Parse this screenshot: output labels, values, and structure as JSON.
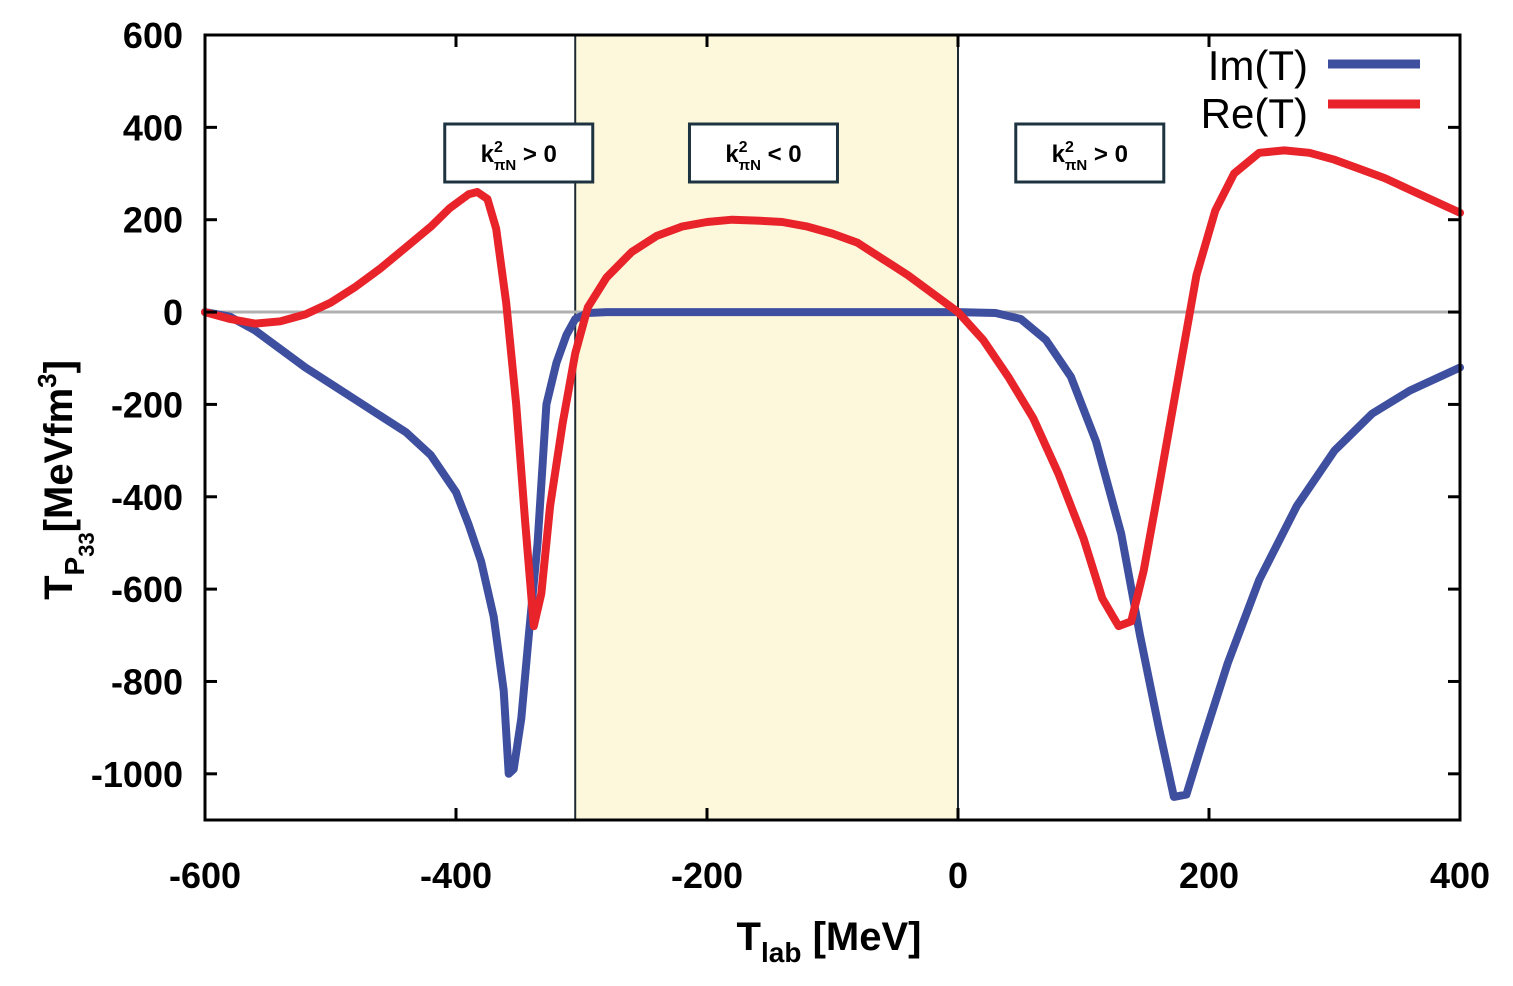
{
  "chart_data": {
    "type": "line",
    "title": "",
    "xlabel": {
      "main": "T",
      "sub": "lab",
      "unit": " [MeV]"
    },
    "ylabel": {
      "main": "T",
      "sub": "P",
      "subsub": "33",
      "unit": "[MeVfm",
      "sup": "3",
      "close": "]"
    },
    "xlim": [
      -600,
      400
    ],
    "ylim": [
      -1100,
      600
    ],
    "xticks": [
      "-600",
      "-400",
      "-200",
      "0",
      "200",
      "400"
    ],
    "xtick_values": [
      -600,
      -400,
      -200,
      0,
      200,
      400
    ],
    "yticks": [
      "600",
      "400",
      "200",
      "0",
      "-200",
      "-400",
      "-600",
      "-800",
      "-1000"
    ],
    "ytick_values": [
      600,
      400,
      200,
      0,
      -200,
      -400,
      -600,
      -800,
      -1000
    ],
    "zero_line": true,
    "shaded_region": {
      "x": [
        -305,
        0
      ],
      "color": "#fdf8dc"
    },
    "legend_position": "top-right",
    "region_labels": [
      {
        "k": "k",
        "sup": "2",
        "sub": "πN",
        "rel": " > 0",
        "x": -350
      },
      {
        "k": "k",
        "sup": "2",
        "sub": "πN",
        "rel": " < 0",
        "x": -155
      },
      {
        "k": "k",
        "sup": "2",
        "sub": "πN",
        "rel": " > 0",
        "x": 105
      }
    ],
    "colors": {
      "im": "#3f4fa0",
      "re": "#e8232a",
      "zero": "#b0b0b0",
      "shade": "#fdf8dc"
    },
    "series": [
      {
        "name": "Im(T)",
        "color": "#3f4fa0",
        "points": [
          [
            -600,
            0
          ],
          [
            -580,
            -10
          ],
          [
            -560,
            -40
          ],
          [
            -540,
            -80
          ],
          [
            -520,
            -120
          ],
          [
            -500,
            -155
          ],
          [
            -480,
            -190
          ],
          [
            -460,
            -225
          ],
          [
            -440,
            -260
          ],
          [
            -420,
            -310
          ],
          [
            -400,
            -390
          ],
          [
            -390,
            -460
          ],
          [
            -380,
            -540
          ],
          [
            -370,
            -660
          ],
          [
            -362,
            -820
          ],
          [
            -358,
            -1000
          ],
          [
            -354,
            -990
          ],
          [
            -348,
            -880
          ],
          [
            -342,
            -700
          ],
          [
            -335,
            -500
          ],
          [
            -328,
            -200
          ],
          [
            -320,
            -110
          ],
          [
            -312,
            -50
          ],
          [
            -305,
            -15
          ],
          [
            -295,
            -2
          ],
          [
            -280,
            0
          ],
          [
            0,
            0
          ],
          [
            30,
            -2
          ],
          [
            50,
            -15
          ],
          [
            70,
            -60
          ],
          [
            90,
            -140
          ],
          [
            110,
            -280
          ],
          [
            130,
            -480
          ],
          [
            145,
            -700
          ],
          [
            160,
            -900
          ],
          [
            172,
            -1050
          ],
          [
            182,
            -1045
          ],
          [
            195,
            -930
          ],
          [
            215,
            -760
          ],
          [
            240,
            -580
          ],
          [
            270,
            -420
          ],
          [
            300,
            -300
          ],
          [
            330,
            -220
          ],
          [
            360,
            -170
          ],
          [
            400,
            -120
          ]
        ]
      },
      {
        "name": "Re(T)",
        "color": "#e8232a",
        "points": [
          [
            -600,
            0
          ],
          [
            -580,
            -15
          ],
          [
            -560,
            -25
          ],
          [
            -540,
            -20
          ],
          [
            -520,
            -5
          ],
          [
            -500,
            20
          ],
          [
            -480,
            55
          ],
          [
            -460,
            95
          ],
          [
            -440,
            140
          ],
          [
            -420,
            185
          ],
          [
            -405,
            225
          ],
          [
            -390,
            255
          ],
          [
            -383,
            260
          ],
          [
            -375,
            245
          ],
          [
            -368,
            180
          ],
          [
            -360,
            20
          ],
          [
            -352,
            -200
          ],
          [
            -345,
            -450
          ],
          [
            -338,
            -680
          ],
          [
            -332,
            -610
          ],
          [
            -325,
            -420
          ],
          [
            -315,
            -240
          ],
          [
            -305,
            -90
          ],
          [
            -295,
            10
          ],
          [
            -280,
            75
          ],
          [
            -260,
            130
          ],
          [
            -240,
            165
          ],
          [
            -220,
            185
          ],
          [
            -200,
            195
          ],
          [
            -180,
            200
          ],
          [
            -160,
            198
          ],
          [
            -140,
            195
          ],
          [
            -120,
            185
          ],
          [
            -100,
            170
          ],
          [
            -80,
            150
          ],
          [
            -60,
            115
          ],
          [
            -40,
            80
          ],
          [
            -20,
            40
          ],
          [
            0,
            0
          ],
          [
            20,
            -60
          ],
          [
            40,
            -140
          ],
          [
            60,
            -230
          ],
          [
            80,
            -350
          ],
          [
            100,
            -490
          ],
          [
            115,
            -620
          ],
          [
            128,
            -680
          ],
          [
            138,
            -670
          ],
          [
            148,
            -560
          ],
          [
            160,
            -380
          ],
          [
            175,
            -150
          ],
          [
            190,
            80
          ],
          [
            205,
            220
          ],
          [
            220,
            300
          ],
          [
            240,
            345
          ],
          [
            260,
            350
          ],
          [
            280,
            345
          ],
          [
            300,
            330
          ],
          [
            320,
            310
          ],
          [
            340,
            290
          ],
          [
            360,
            265
          ],
          [
            380,
            240
          ],
          [
            400,
            215
          ]
        ]
      }
    ]
  }
}
